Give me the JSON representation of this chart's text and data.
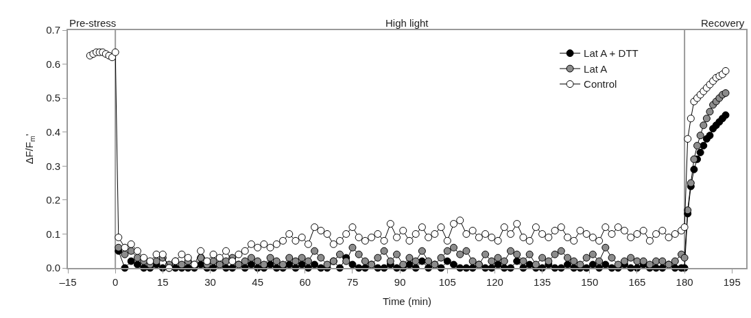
{
  "chart_data": {
    "type": "line",
    "xlabel": "Time (min)",
    "ylabel": "ΔF/F$_{m}$'",
    "annotations": [
      "Pre-stress",
      "High light",
      "Recovery"
    ],
    "x": [
      1,
      3,
      5,
      7,
      9,
      11,
      13,
      15,
      17,
      19,
      21,
      23,
      25,
      27,
      29,
      31,
      33,
      35,
      37,
      39,
      41,
      43,
      45,
      47,
      49,
      51,
      53,
      55,
      57,
      59,
      61,
      63,
      65,
      67,
      69,
      71,
      73,
      75,
      77,
      79,
      81,
      83,
      85,
      87,
      89,
      91,
      93,
      95,
      97,
      99,
      101,
      103,
      105,
      107,
      109,
      111,
      113,
      115,
      117,
      119,
      121,
      123,
      125,
      127,
      129,
      131,
      133,
      135,
      137,
      139,
      141,
      143,
      145,
      147,
      149,
      151,
      153,
      155,
      157,
      159,
      161,
      163,
      165,
      167,
      169,
      171,
      173,
      175,
      177,
      179,
      180,
      181,
      182,
      183,
      184,
      185,
      186,
      187,
      188,
      189,
      190,
      191,
      192,
      193
    ],
    "series": [
      {
        "name": "Lat A + DTT",
        "color": "#000000",
        "values": [
          0.05,
          0.0,
          0.02,
          0.01,
          0.0,
          0.0,
          0.01,
          0.0,
          0.0,
          0.0,
          0.0,
          0.0,
          0.0,
          0.01,
          0.0,
          0.0,
          0.01,
          0.0,
          0.0,
          0.01,
          0.0,
          0.01,
          0.0,
          0.0,
          0.01,
          0.0,
          0.0,
          0.01,
          0.0,
          0.01,
          0.0,
          0.01,
          0.0,
          0.0,
          0.02,
          0.0,
          0.03,
          0.01,
          0.0,
          0.0,
          0.01,
          0.0,
          0.0,
          0.01,
          0.0,
          0.0,
          0.01,
          0.0,
          0.02,
          0.0,
          0.01,
          0.0,
          0.02,
          0.01,
          0.0,
          0.0,
          0.0,
          0.01,
          0.0,
          0.0,
          0.01,
          0.0,
          0.0,
          0.02,
          0.0,
          0.01,
          0.0,
          0.0,
          0.01,
          0.0,
          0.0,
          0.01,
          0.0,
          0.0,
          0.0,
          0.01,
          0.0,
          0.01,
          0.0,
          0.0,
          0.01,
          0.0,
          0.0,
          0.01,
          0.0,
          0.0,
          0.0,
          0.01,
          0.0,
          0.0,
          0.0,
          0.16,
          0.24,
          0.29,
          0.32,
          0.34,
          0.36,
          0.38,
          0.39,
          0.41,
          0.42,
          0.43,
          0.44,
          0.45
        ]
      },
      {
        "name": "Lat A",
        "color": "#8c8c8c",
        "values": [
          0.06,
          0.04,
          0.05,
          0.03,
          0.02,
          0.01,
          0.02,
          0.03,
          0.01,
          0.02,
          0.01,
          0.02,
          0.01,
          0.03,
          0.01,
          0.02,
          0.01,
          0.02,
          0.03,
          0.01,
          0.02,
          0.03,
          0.02,
          0.01,
          0.03,
          0.02,
          0.01,
          0.03,
          0.02,
          0.03,
          0.02,
          0.05,
          0.03,
          0.01,
          0.02,
          0.04,
          0.02,
          0.06,
          0.04,
          0.02,
          0.01,
          0.03,
          0.05,
          0.02,
          0.04,
          0.01,
          0.03,
          0.02,
          0.05,
          0.02,
          0.01,
          0.03,
          0.05,
          0.06,
          0.04,
          0.05,
          0.02,
          0.01,
          0.04,
          0.02,
          0.03,
          0.02,
          0.05,
          0.04,
          0.02,
          0.04,
          0.01,
          0.03,
          0.02,
          0.04,
          0.05,
          0.03,
          0.02,
          0.01,
          0.03,
          0.04,
          0.02,
          0.06,
          0.03,
          0.01,
          0.02,
          0.03,
          0.02,
          0.02,
          0.01,
          0.02,
          0.02,
          0.01,
          0.02,
          0.04,
          0.03,
          0.17,
          0.25,
          0.32,
          0.36,
          0.39,
          0.42,
          0.44,
          0.46,
          0.48,
          0.49,
          0.5,
          0.51,
          0.515
        ]
      },
      {
        "name": "Control",
        "color": "#ffffff",
        "x": [
          -8,
          -7,
          -6,
          -5,
          -4,
          -3,
          -2,
          -1,
          0,
          1,
          3,
          5,
          7,
          9,
          11,
          13,
          15,
          17,
          19,
          21,
          23,
          25,
          27,
          29,
          31,
          33,
          35,
          37,
          39,
          41,
          43,
          45,
          47,
          49,
          51,
          53,
          55,
          57,
          59,
          61,
          63,
          65,
          67,
          69,
          71,
          73,
          75,
          77,
          79,
          81,
          83,
          85,
          87,
          89,
          91,
          93,
          95,
          97,
          99,
          101,
          103,
          105,
          107,
          109,
          111,
          113,
          115,
          117,
          119,
          121,
          123,
          125,
          127,
          129,
          131,
          133,
          135,
          137,
          139,
          141,
          143,
          145,
          147,
          149,
          151,
          153,
          155,
          157,
          159,
          161,
          163,
          165,
          167,
          169,
          171,
          173,
          175,
          177,
          179,
          180,
          181,
          182,
          183,
          184,
          185,
          186,
          187,
          188,
          189,
          190,
          191,
          192,
          193
        ],
        "values": [
          0.625,
          0.63,
          0.635,
          0.635,
          0.635,
          0.63,
          0.625,
          0.62,
          0.635,
          0.09,
          0.06,
          0.07,
          0.05,
          0.03,
          0.02,
          0.04,
          0.04,
          0.0,
          0.02,
          0.04,
          0.03,
          0.01,
          0.05,
          0.02,
          0.04,
          0.03,
          0.05,
          0.02,
          0.04,
          0.05,
          0.07,
          0.06,
          0.07,
          0.06,
          0.07,
          0.08,
          0.1,
          0.08,
          0.09,
          0.07,
          0.12,
          0.11,
          0.1,
          0.07,
          0.08,
          0.1,
          0.12,
          0.09,
          0.08,
          0.09,
          0.1,
          0.08,
          0.13,
          0.09,
          0.11,
          0.08,
          0.1,
          0.12,
          0.09,
          0.1,
          0.12,
          0.08,
          0.13,
          0.14,
          0.1,
          0.11,
          0.09,
          0.1,
          0.09,
          0.08,
          0.12,
          0.1,
          0.13,
          0.09,
          0.08,
          0.12,
          0.1,
          0.09,
          0.11,
          0.12,
          0.09,
          0.08,
          0.11,
          0.1,
          0.09,
          0.08,
          0.12,
          0.1,
          0.12,
          0.11,
          0.09,
          0.1,
          0.11,
          0.08,
          0.1,
          0.11,
          0.09,
          0.1,
          0.11,
          0.12,
          0.38,
          0.44,
          0.49,
          0.5,
          0.51,
          0.52,
          0.53,
          0.54,
          0.55,
          0.56,
          0.565,
          0.57,
          0.58
        ]
      }
    ],
    "xlim": [
      -15,
      199.5
    ],
    "xticks": [
      {
        "value": -15,
        "label": "–15"
      },
      0,
      15,
      30,
      45,
      60,
      75,
      90,
      105,
      120,
      135,
      150,
      165,
      180,
      195
    ],
    "ylim": [
      0,
      0.7
    ],
    "yticks": [
      {
        "value": 0,
        "label": "0.0"
      },
      0.1,
      0.2,
      0.3,
      0.4,
      0.5,
      0.6,
      0.7
    ],
    "ref_lines": [
      {
        "axis": "x",
        "value": 0,
        "color": "#999999"
      },
      {
        "axis": "x",
        "value": 180,
        "color": "#999999"
      }
    ],
    "marker": "circle",
    "legend": "top right",
    "grid": false
  }
}
